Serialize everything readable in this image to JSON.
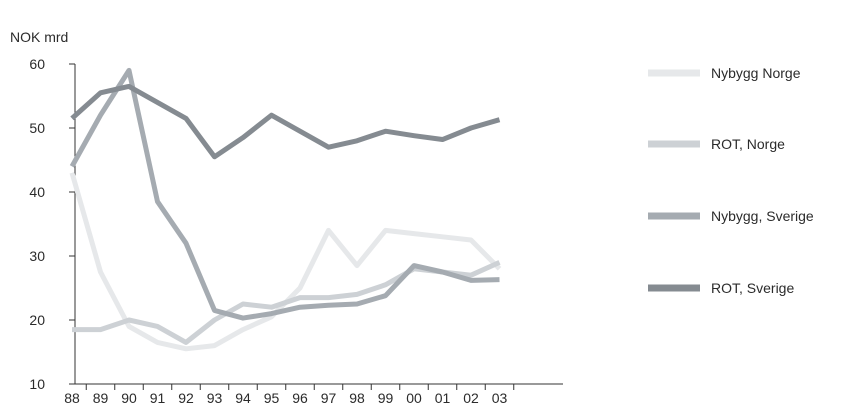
{
  "chart_data": {
    "type": "line",
    "unit_label": "NOK mrd",
    "x": [
      "88",
      "89",
      "90",
      "91",
      "92",
      "93",
      "94",
      "95",
      "96",
      "97",
      "98",
      "99",
      "00",
      "01",
      "02",
      "03"
    ],
    "y_ticks": [
      "10",
      "20",
      "30",
      "40",
      "50",
      "60"
    ],
    "ylim": [
      10,
      60
    ],
    "grid": false,
    "legend_position": "right",
    "series": [
      {
        "name": "Nybygg Norge",
        "color": "#e6e8ea",
        "values": [
          43,
          27.5,
          19,
          16.5,
          15.5,
          16,
          18.5,
          20.5,
          25,
          34,
          28.5,
          34,
          33.5,
          33,
          32.5,
          28
        ]
      },
      {
        "name": "ROT, Norge",
        "color": "#cdd1d5",
        "values": [
          18.5,
          18.5,
          20,
          19,
          16.5,
          20,
          22.5,
          22,
          23.5,
          23.5,
          24,
          25.5,
          28,
          27.5,
          27,
          29
        ]
      },
      {
        "name": "Nybygg, Sverige",
        "color": "#a5abb1",
        "values": [
          44,
          52,
          59,
          38.5,
          32,
          21.5,
          20.3,
          21,
          22,
          22.3,
          22.5,
          23.8,
          28.5,
          27.5,
          26.2,
          26.3
        ]
      },
      {
        "name": "ROT, Sverige",
        "color": "#858b91",
        "values": [
          51.5,
          55.5,
          56.5,
          54,
          51.5,
          45.5,
          48.5,
          52,
          49.5,
          47,
          48,
          49.5,
          48.8,
          48.2,
          50,
          51.3
        ]
      }
    ]
  }
}
